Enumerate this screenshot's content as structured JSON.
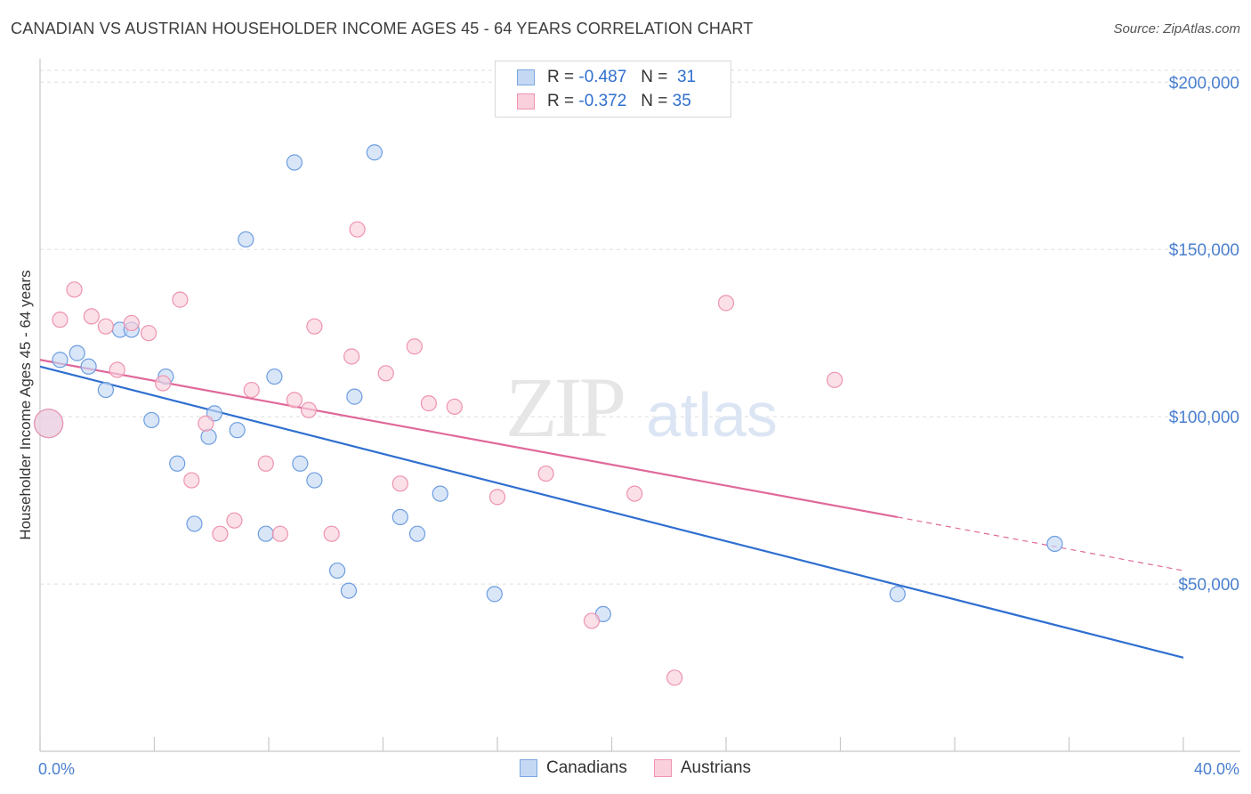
{
  "header": {
    "title": "CANADIAN VS AUSTRIAN HOUSEHOLDER INCOME AGES 45 - 64 YEARS CORRELATION CHART",
    "source": "Source: ZipAtlas.com"
  },
  "watermark": {
    "zip": "ZIP",
    "atlas": "atlas"
  },
  "legend": {
    "rows": [
      {
        "r_label": "R =",
        "r_value": "-0.487",
        "n_label": "N =",
        "n_value": "31",
        "color": "#a9c6ee",
        "border": "#7aa6e0"
      },
      {
        "r_label": "R =",
        "r_value": "-0.372",
        "n_label": "N =",
        "n_value": "35",
        "color": "#f7bfd0",
        "border": "#ee93ae"
      }
    ]
  },
  "bottom_legend": [
    {
      "label": "Canadians",
      "color": "#a9c6ee",
      "border": "#7aa6e0"
    },
    {
      "label": "Austrians",
      "color": "#f7bfd0",
      "border": "#ee93ae"
    }
  ],
  "chart_data": {
    "type": "scatter",
    "title": "CANADIAN VS AUSTRIAN HOUSEHOLDER INCOME AGES 45 - 64 YEARS CORRELATION CHART",
    "xlabel": "",
    "ylabel": "Householder Income Ages 45 - 64 years",
    "xlim": [
      0,
      40
    ],
    "ylim": [
      0,
      207000
    ],
    "x_tick_labels": [
      {
        "value": 0,
        "label": "0.0%"
      },
      {
        "value": 40,
        "label": "40.0%"
      }
    ],
    "y_tick_labels": [
      {
        "value": 50000,
        "label": "$50,000"
      },
      {
        "value": 100000,
        "label": "$100,000"
      },
      {
        "value": 150000,
        "label": "$150,000"
      },
      {
        "value": 200000,
        "label": "$200,000"
      }
    ],
    "grid": true,
    "legend_position": "top-center",
    "series": [
      {
        "name": "Canadians",
        "color": "#6d9de0",
        "fill": "#c4d8f4",
        "trend": {
          "x": [
            0,
            40
          ],
          "y": [
            115000,
            28000
          ],
          "color": "#2f6fd0"
        },
        "points": [
          [
            0.3,
            98000
          ],
          [
            0.7,
            117000
          ],
          [
            1.3,
            119000
          ],
          [
            1.7,
            115000
          ],
          [
            2.3,
            108000
          ],
          [
            2.8,
            126000
          ],
          [
            3.2,
            126000
          ],
          [
            3.9,
            99000
          ],
          [
            4.4,
            112000
          ],
          [
            4.8,
            86000
          ],
          [
            5.4,
            68000
          ],
          [
            5.9,
            94000
          ],
          [
            6.1,
            101000
          ],
          [
            6.9,
            96000
          ],
          [
            7.2,
            153000
          ],
          [
            7.9,
            65000
          ],
          [
            8.2,
            112000
          ],
          [
            8.9,
            176000
          ],
          [
            9.1,
            86000
          ],
          [
            9.6,
            81000
          ],
          [
            10.4,
            54000
          ],
          [
            10.8,
            48000
          ],
          [
            11.0,
            106000
          ],
          [
            11.7,
            179000
          ],
          [
            12.6,
            70000
          ],
          [
            13.2,
            65000
          ],
          [
            14.0,
            77000
          ],
          [
            15.9,
            47000
          ],
          [
            19.7,
            41000
          ],
          [
            30.0,
            47000
          ],
          [
            35.5,
            62000
          ]
        ]
      },
      {
        "name": "Austrians",
        "color": "#ee93ae",
        "fill": "#f9d0dc",
        "trend": {
          "x": [
            0,
            30
          ],
          "y": [
            117000,
            70000
          ],
          "color": "#e0689a",
          "dash_to": [
            40,
            54000
          ]
        },
        "points": [
          [
            0.3,
            98000
          ],
          [
            0.7,
            129000
          ],
          [
            1.2,
            138000
          ],
          [
            1.8,
            130000
          ],
          [
            2.3,
            127000
          ],
          [
            2.7,
            114000
          ],
          [
            3.2,
            128000
          ],
          [
            3.8,
            125000
          ],
          [
            4.3,
            110000
          ],
          [
            4.9,
            135000
          ],
          [
            5.3,
            81000
          ],
          [
            5.8,
            98000
          ],
          [
            6.3,
            65000
          ],
          [
            6.8,
            69000
          ],
          [
            7.4,
            108000
          ],
          [
            7.9,
            86000
          ],
          [
            8.4,
            65000
          ],
          [
            8.9,
            105000
          ],
          [
            9.4,
            102000
          ],
          [
            9.6,
            127000
          ],
          [
            10.2,
            65000
          ],
          [
            10.9,
            118000
          ],
          [
            11.1,
            156000
          ],
          [
            12.1,
            113000
          ],
          [
            12.6,
            80000
          ],
          [
            13.1,
            121000
          ],
          [
            13.6,
            104000
          ],
          [
            14.5,
            103000
          ],
          [
            16.0,
            76000
          ],
          [
            17.7,
            83000
          ],
          [
            19.3,
            39000
          ],
          [
            20.8,
            77000
          ],
          [
            22.2,
            22000
          ],
          [
            24.0,
            134000
          ],
          [
            27.8,
            111000
          ]
        ]
      }
    ]
  }
}
